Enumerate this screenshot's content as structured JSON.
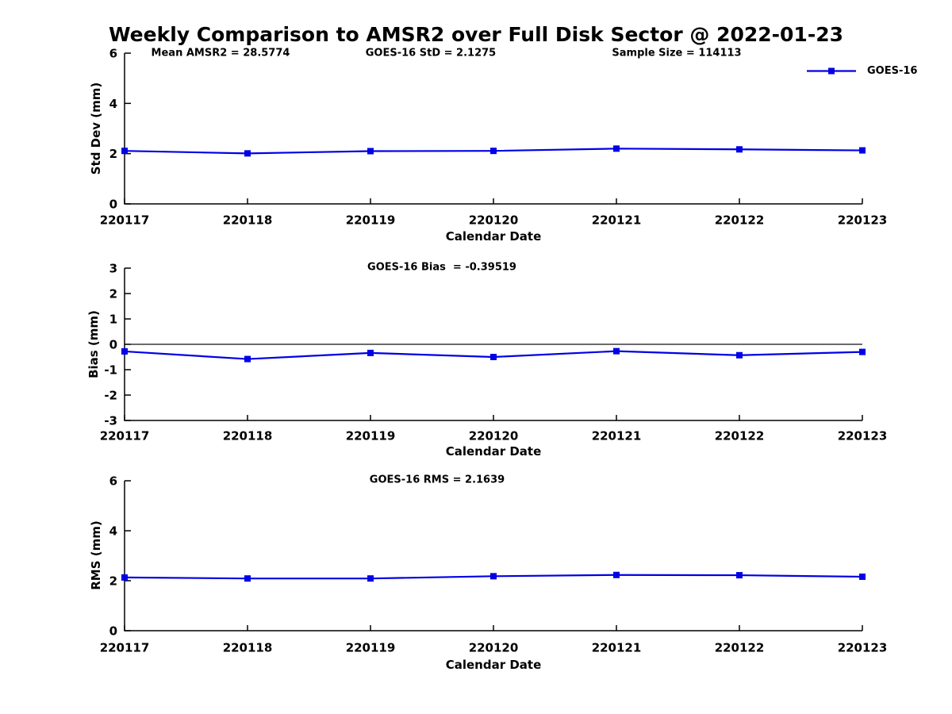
{
  "title": "Weekly Comparison to AMSR2 over Full Disk Sector @ 2022-01-23",
  "legend": {
    "label": "GOES-16",
    "line_color": "#0000e6",
    "marker": "square"
  },
  "chart_data": [
    {
      "type": "line",
      "title": "",
      "annotations": [
        "Mean AMSR2 = 28.5774",
        "GOES-16 StD = 2.1275",
        "Sample Size = 114113"
      ],
      "categories": [
        "220117",
        "220118",
        "220119",
        "220120",
        "220121",
        "220122",
        "220123"
      ],
      "xlabel": "Calendar Date",
      "ylabel": "Std Dev (mm)",
      "ylim": [
        0,
        6
      ],
      "yticks": [
        0,
        2,
        4,
        6
      ],
      "grid": false,
      "legend_position": "top-right-outside",
      "series": [
        {
          "name": "GOES-16",
          "color": "#0000e6",
          "marker": "square",
          "values": [
            2.11,
            2.01,
            2.1,
            2.11,
            2.2,
            2.17,
            2.13
          ]
        }
      ]
    },
    {
      "type": "line",
      "title": "GOES-16 Bias  = -0.39519",
      "categories": [
        "220117",
        "220118",
        "220119",
        "220120",
        "220121",
        "220122",
        "220123"
      ],
      "xlabel": "Calendar Date",
      "ylabel": "Bias (mm)",
      "ylim": [
        -3,
        3
      ],
      "yticks": [
        -3,
        -2,
        -1,
        0,
        1,
        2,
        3
      ],
      "zero_line": true,
      "grid": false,
      "series": [
        {
          "name": "GOES-16",
          "color": "#0000e6",
          "marker": "square",
          "values": [
            -0.28,
            -0.58,
            -0.34,
            -0.5,
            -0.27,
            -0.43,
            -0.3
          ]
        }
      ]
    },
    {
      "type": "line",
      "title": "GOES-16 RMS = 2.1639",
      "categories": [
        "220117",
        "220118",
        "220119",
        "220120",
        "220121",
        "220122",
        "220123"
      ],
      "xlabel": "Calendar Date",
      "ylabel": "RMS (mm)",
      "ylim": [
        0,
        6
      ],
      "yticks": [
        0,
        2,
        4,
        6
      ],
      "grid": false,
      "series": [
        {
          "name": "GOES-16",
          "color": "#0000e6",
          "marker": "square",
          "values": [
            2.13,
            2.09,
            2.09,
            2.18,
            2.23,
            2.22,
            2.16
          ]
        }
      ]
    }
  ]
}
